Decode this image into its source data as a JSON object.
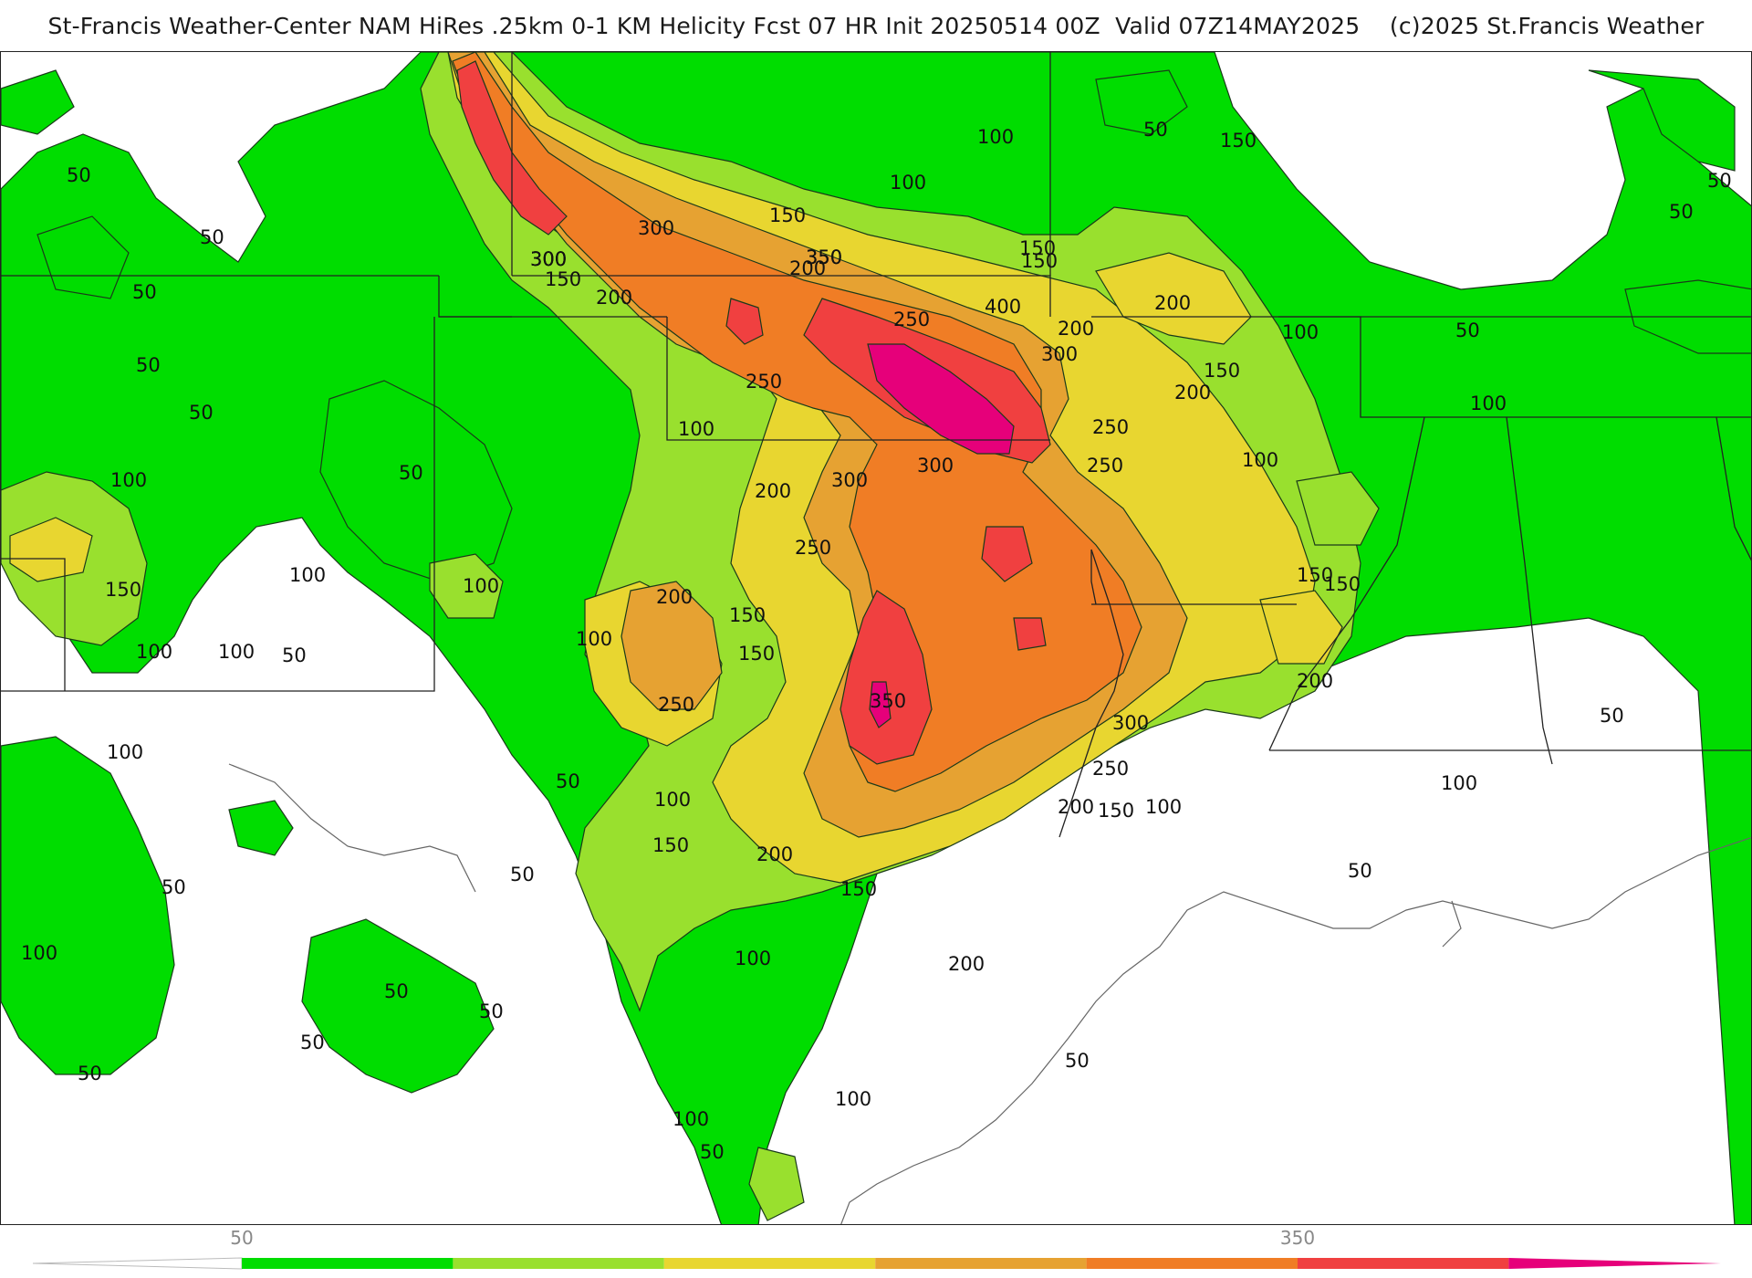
{
  "header": {
    "title": "St-Francis Weather-Center NAM HiRes .25km 0-1 KM Helicity Fcst 07 HR Init 20250514 00Z  Valid 07Z14MAY2025    (c)2025 St.Francis Weather"
  },
  "map": {
    "field": "0-1 KM Helicity",
    "contour_interval": 50,
    "contour_labels": [
      "50",
      "50",
      "50",
      "50",
      "50",
      "50",
      "50",
      "50",
      "50",
      "50",
      "50",
      "50",
      "50",
      "50",
      "50",
      "50",
      "50",
      "50",
      "50",
      "50",
      "50",
      "50",
      "100",
      "100",
      "100",
      "100",
      "100",
      "100",
      "100",
      "100",
      "100",
      "100",
      "100",
      "100",
      "100",
      "100",
      "100",
      "100",
      "100",
      "100",
      "100",
      "100",
      "150",
      "150",
      "150",
      "150",
      "150",
      "150",
      "150",
      "150",
      "150",
      "150",
      "150",
      "150",
      "150",
      "150",
      "200",
      "200",
      "200",
      "200",
      "200",
      "200",
      "200",
      "200",
      "200",
      "200",
      "200",
      "250",
      "250",
      "250",
      "250",
      "250",
      "250",
      "250",
      "300",
      "300",
      "300",
      "300",
      "300",
      "300",
      "300",
      "300",
      "350",
      "350",
      "350",
      "400"
    ]
  },
  "legend": {
    "ticks": [
      "50",
      "350"
    ],
    "colors": [
      "#00dd00",
      "#99e02e",
      "#e8d630",
      "#e6a232",
      "#f07d25",
      "#f04040",
      "#e6007a"
    ],
    "tick_values": [
      50,
      350
    ],
    "range": [
      0,
      400
    ]
  }
}
